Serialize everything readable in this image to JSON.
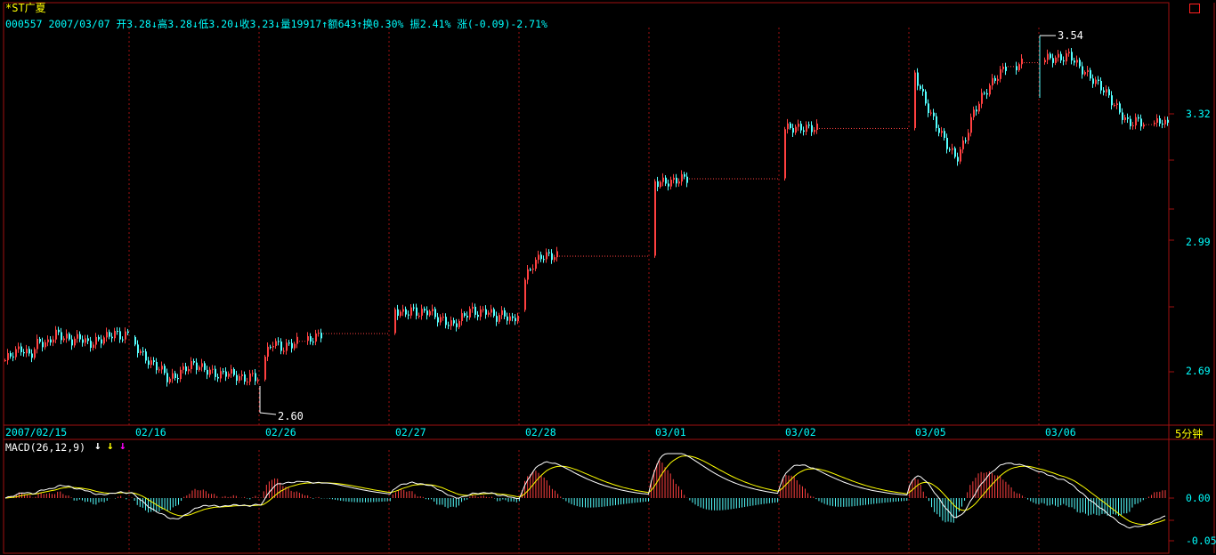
{
  "header": {
    "title": "*ST广夏",
    "info": "000557 2007/03/07 开3.28↓高3.28↓低3.20↓收3.23↓量19917↑额643↑换0.30% 振2.41% 涨(-0.09)-2.71%"
  },
  "price_axis": {
    "labels": [
      "3.32",
      "2.99",
      "2.69"
    ]
  },
  "annotations": {
    "low_label": "2.60",
    "high_label": "3.54"
  },
  "date_axis": {
    "labels": [
      "2007/02/15",
      "02/16",
      "02/26",
      "02/27",
      "02/28",
      "03/01",
      "03/02",
      "03/05",
      "03/06"
    ]
  },
  "period_label": "5分钟",
  "macd": {
    "title": "MACD(26,12,9)",
    "axis_labels": [
      "0.00",
      "-0.05"
    ],
    "arrow_colors": [
      "#ffffff",
      "#ffff00",
      "#ff00ff"
    ]
  },
  "colors": {
    "up": "#ff4040",
    "down": "#54ffff",
    "grid": "#a01010",
    "dif": "#ffffff",
    "dea": "#ffff00"
  },
  "chart_data": {
    "type": "candlestick",
    "xlabel": "",
    "ylabel": "",
    "ylim": [
      2.57,
      3.6
    ],
    "days": [
      {
        "date": "2007/02/15",
        "start": 2.72,
        "pts": [
          2.72,
          2.74,
          2.75,
          2.73,
          2.77,
          2.76,
          2.79,
          2.78,
          2.77,
          2.78,
          2.76,
          2.77,
          2.78,
          2.79,
          2.78,
          2.79
        ]
      },
      {
        "date": "02/16",
        "start": 2.78,
        "pts": [
          2.76,
          2.73,
          2.71,
          2.7,
          2.67,
          2.68,
          2.7,
          2.71,
          2.7,
          2.69,
          2.68,
          2.69,
          2.68,
          2.67,
          2.68,
          2.67
        ]
      },
      {
        "date": "02/26",
        "start": 2.67,
        "pts": [
          2.73,
          2.77,
          2.75,
          2.76,
          2.77,
          2.77,
          2.78,
          2.79,
          2.79,
          2.79,
          2.79,
          2.79,
          2.79,
          2.79,
          2.79,
          2.79
        ]
      },
      {
        "date": "02/27",
        "start": 2.79,
        "pts": [
          2.85,
          2.84,
          2.85,
          2.84,
          2.85,
          2.83,
          2.82,
          2.81,
          2.83,
          2.85,
          2.84,
          2.85,
          2.83,
          2.84,
          2.82,
          2.85
        ]
      },
      {
        "date": "02/28",
        "start": 2.85,
        "pts": [
          2.93,
          2.97,
          2.99,
          2.99,
          2.99,
          2.99,
          2.99,
          2.99,
          2.99,
          2.99,
          2.99,
          2.99,
          2.99,
          2.99,
          2.99,
          2.99
        ]
      },
      {
        "date": "03/01",
        "start": 2.99,
        "pts": [
          3.18,
          3.18,
          3.18,
          3.19,
          3.19,
          3.19,
          3.19,
          3.19,
          3.19,
          3.19,
          3.19,
          3.19,
          3.19,
          3.19,
          3.19,
          3.19
        ]
      },
      {
        "date": "03/02",
        "start": 3.19,
        "pts": [
          3.32,
          3.32,
          3.32,
          3.32,
          3.32,
          3.32,
          3.32,
          3.32,
          3.32,
          3.32,
          3.32,
          3.32,
          3.32,
          3.32,
          3.32,
          3.32
        ]
      },
      {
        "date": "03/05",
        "start": 3.32,
        "pts": [
          3.46,
          3.4,
          3.35,
          3.31,
          3.27,
          3.24,
          3.29,
          3.36,
          3.4,
          3.43,
          3.46,
          3.48,
          3.48,
          3.49,
          3.49,
          3.49
        ]
      },
      {
        "date": "03/06",
        "start": 3.49,
        "pts": [
          3.5,
          3.5,
          3.5,
          3.51,
          3.48,
          3.46,
          3.44,
          3.42,
          3.39,
          3.36,
          3.33,
          3.34,
          3.33,
          3.33,
          3.34,
          3.32
        ]
      }
    ],
    "low": {
      "value": 2.6,
      "date": "02/26"
    },
    "high": {
      "value": 3.54,
      "date": "03/06"
    }
  }
}
